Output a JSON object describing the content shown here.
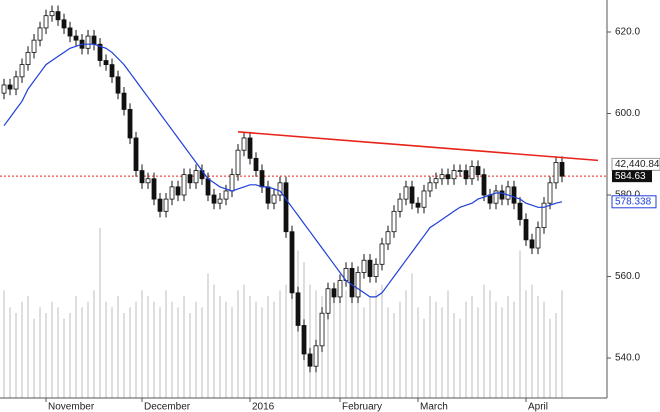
{
  "chart_data": {
    "type": "candlestick",
    "open": [
      605,
      607,
      606,
      609,
      612,
      615,
      618,
      621,
      624,
      625,
      623,
      621,
      619,
      618,
      616,
      619,
      617,
      613,
      612,
      609,
      605,
      601,
      594,
      586,
      583,
      584,
      579,
      576,
      579,
      582,
      580,
      585,
      583,
      586,
      584,
      580,
      578,
      579,
      581,
      585,
      591,
      594,
      589,
      586,
      582,
      578,
      580,
      583,
      571,
      556,
      548,
      541,
      538,
      543,
      551,
      557,
      555,
      559,
      562,
      555,
      561,
      564,
      560,
      563,
      568,
      571,
      576,
      579,
      582,
      578,
      577,
      581,
      583,
      584,
      585,
      584,
      586,
      586,
      584,
      587,
      585,
      580,
      578,
      581,
      579,
      582,
      578,
      574,
      569,
      567,
      572,
      578,
      583,
      588
    ],
    "high": [
      608.5,
      608.5,
      610.5,
      613.5,
      616.5,
      619.5,
      622.5,
      625.5,
      626.5,
      626.5,
      624.5,
      622.5,
      620.5,
      619.5,
      620.5,
      620.5,
      618.5,
      614.5,
      613.5,
      610.5,
      606.5,
      602.5,
      595.5,
      587.5,
      585.5,
      585.5,
      580.5,
      580.5,
      583.5,
      583.5,
      586.5,
      586.5,
      587.5,
      587.5,
      585.5,
      581.5,
      580.5,
      582.5,
      586.5,
      592.5,
      595.5,
      595.5,
      590.5,
      587.5,
      583.5,
      581.5,
      584.5,
      584.5,
      572.5,
      557.5,
      549.5,
      542.5,
      544.5,
      552.5,
      558.5,
      558.5,
      560.5,
      563.5,
      563.5,
      562.5,
      565.5,
      565.5,
      564.5,
      569.5,
      572.5,
      577.5,
      580.5,
      583.5,
      583.5,
      579.5,
      582.5,
      584.5,
      585.5,
      586.5,
      586.5,
      587.5,
      587.5,
      587.5,
      588.5,
      588.5,
      586.5,
      581.5,
      582.5,
      582.5,
      583.5,
      583.5,
      579.5,
      575.5,
      570.5,
      573.5,
      579.5,
      584.5,
      589.5,
      589.5
    ],
    "low": [
      603.5,
      604.5,
      604.5,
      607.5,
      610.5,
      613.5,
      616.5,
      619.5,
      622.5,
      621.5,
      619.5,
      617.5,
      616.5,
      614.5,
      614.5,
      615.5,
      611.5,
      610.5,
      607.5,
      603.5,
      599.5,
      592.5,
      584.5,
      581.5,
      581.5,
      577.5,
      574.5,
      574.5,
      577.5,
      578.5,
      578.5,
      581.5,
      581.5,
      582.5,
      578.5,
      576.5,
      576.5,
      577.5,
      579.5,
      583.5,
      589.5,
      587.5,
      584.5,
      580.5,
      576.5,
      576.5,
      578.5,
      569.5,
      554.5,
      546.5,
      539.5,
      536.5,
      536.5,
      541.5,
      549.5,
      553.5,
      553.5,
      557.5,
      553.5,
      553.5,
      559.5,
      558.5,
      558.5,
      561.5,
      566.5,
      569.5,
      574.5,
      577.5,
      576.5,
      575.5,
      575.5,
      579.5,
      581.5,
      582.5,
      582.5,
      582.5,
      584.5,
      582.5,
      582.5,
      583.5,
      578.5,
      576.5,
      576.5,
      577.5,
      577.5,
      576.5,
      572.5,
      567.5,
      565.5,
      565.5,
      570.5,
      576.5,
      581.5,
      583.13
    ],
    "close": [
      607,
      606,
      609,
      612,
      615,
      618,
      621,
      624,
      625,
      623,
      621,
      619,
      618,
      616,
      619,
      617,
      613,
      612,
      609,
      605,
      601,
      594,
      586,
      583,
      584,
      579,
      576,
      579,
      582,
      580,
      585,
      583,
      586,
      584,
      580,
      578,
      579,
      581,
      585,
      591,
      594,
      589,
      586,
      582,
      578,
      580,
      583,
      571,
      556,
      548,
      541,
      538,
      543,
      551,
      557,
      555,
      559,
      562,
      555,
      561,
      564,
      560,
      563,
      568,
      571,
      576,
      579,
      582,
      578,
      577,
      581,
      583,
      584,
      585,
      584,
      586,
      586,
      584,
      587,
      585,
      580,
      578,
      581,
      579,
      582,
      578,
      574,
      569,
      567,
      572,
      578,
      583,
      588,
      584.63
    ],
    "volume": [
      95,
      80,
      75,
      85,
      90,
      70,
      80,
      75,
      85,
      80,
      70,
      75,
      90,
      80,
      85,
      95,
      150,
      85,
      80,
      90,
      75,
      80,
      85,
      95,
      90,
      85,
      80,
      95,
      85,
      80,
      90,
      75,
      85,
      80,
      110,
      100,
      90,
      85,
      80,
      95,
      100,
      90,
      85,
      80,
      90,
      85,
      95,
      100,
      110,
      130,
      120,
      100,
      95,
      90,
      95,
      85,
      100,
      95,
      90,
      85,
      80,
      90,
      95,
      100,
      80,
      75,
      85,
      95,
      110,
      80,
      70,
      90,
      85,
      80,
      95,
      75,
      70,
      85,
      90,
      80,
      100,
      95,
      85,
      80,
      90,
      85,
      130,
      95,
      100,
      90,
      85,
      70,
      75,
      95
    ],
    "ma": {
      "color": "#1f3fd8",
      "values": [
        597,
        599,
        601,
        603,
        606,
        608,
        610,
        612,
        613,
        614,
        615,
        616,
        616.5,
        617,
        617,
        617,
        616.5,
        616,
        615,
        613.5,
        612,
        610,
        608,
        606,
        604,
        602,
        600,
        598,
        596,
        594,
        592,
        590,
        588,
        586,
        584,
        583,
        582,
        581.5,
        581,
        581.5,
        582,
        582.5,
        582.5,
        582,
        582,
        581.5,
        581,
        579,
        577,
        575,
        573,
        571,
        569,
        567,
        565,
        563,
        561,
        559,
        558,
        557,
        556,
        555,
        555,
        556,
        558,
        560,
        562,
        564,
        566,
        568,
        570,
        572,
        573,
        574,
        575,
        576,
        577,
        577.5,
        578,
        579,
        579.5,
        580,
        580.5,
        580.5,
        580,
        579.5,
        579,
        578,
        577.5,
        577,
        577,
        577.5,
        578,
        578.338
      ]
    },
    "trendline": {
      "color": "#e8231a",
      "x": [
        39,
        99
      ],
      "values": [
        595.5,
        588.5
      ]
    },
    "trend_label": "42,440.84",
    "xlim": [
      -0.67,
      100.5
    ],
    "ylim": [
      530.2,
      627.85
    ],
    "yticks": [
      {
        "value": 540,
        "label": "540.0"
      },
      {
        "value": 560,
        "label": "560.0"
      },
      {
        "value": 580,
        "label": "580.0"
      },
      {
        "value": 600,
        "label": "600.0"
      },
      {
        "value": 620,
        "label": "620.0"
      }
    ],
    "xticks": [
      {
        "value": 7,
        "label": "November"
      },
      {
        "value": 23,
        "label": "December"
      },
      {
        "value": 41,
        "label": "2016"
      },
      {
        "value": 56,
        "label": "February"
      },
      {
        "value": 69,
        "label": "March"
      },
      {
        "value": 87,
        "label": "April"
      }
    ]
  }
}
